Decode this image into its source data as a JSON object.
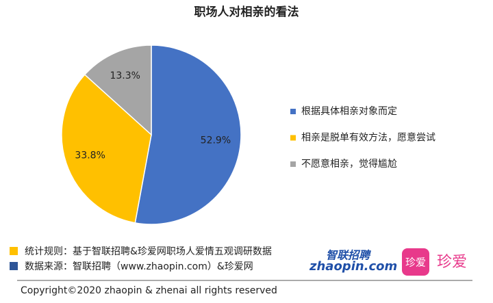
{
  "chart_data": {
    "type": "pie",
    "title": "职场人对相亲的看法",
    "categories": [
      "根据具体相亲对象而定",
      "相亲是脱单有效方法，愿意尝试",
      "不愿意相亲，觉得尴尬"
    ],
    "values": [
      52.9,
      33.8,
      13.3
    ],
    "value_labels": [
      "52.9%",
      "33.8%",
      "13.3%"
    ],
    "colors": [
      "#4472c4",
      "#ffc000",
      "#a5a5a5"
    ],
    "legend": "right"
  },
  "footer": {
    "notes": [
      "统计规则：基于智联招聘&珍爱网职场人爱情五观调研数据",
      "数据来源：智联招聘（www.zhaopin.com）&珍爱网"
    ],
    "logos": [
      "智联招聘",
      "zhaopin.com",
      "珍爱",
      "珍爱"
    ],
    "copyright": "Copyright©2020 zhaopin & zhenai  all rights reserved"
  }
}
